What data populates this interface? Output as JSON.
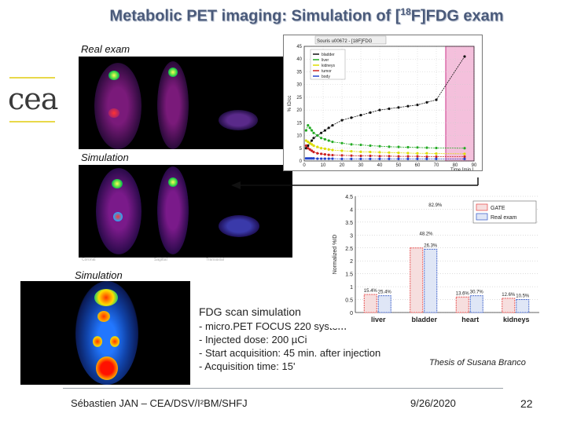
{
  "slide": {
    "title_pre": "Metabolic PET imaging: Simulation of [",
    "title_sup": "18",
    "title_post": "F]FDG exam",
    "logo_text": "cea",
    "label_real": "Real exam",
    "label_sim1": "Simulation",
    "label_sim2": "Simulation",
    "view_labels": [
      "Coronal",
      "Sagittal",
      "Transaxial"
    ],
    "desc_title": "FDG scan simulation",
    "desc_items": [
      "- micro.PET FOCUS 220 system",
      "- Injected dose: 200 µCi",
      "- Start acquisition: 45 min. after injection",
      "- Acquisition time: 15'"
    ],
    "thesis": "Thesis of Susana Branco",
    "footer_author": "Sébastien JAN – CEA/DSV/I²BM/SHFJ",
    "footer_date": "9/26/2020",
    "footer_page": "22"
  },
  "colors": {
    "title": "#4a5a7a",
    "logo_line": "#e8d84a",
    "logo_text": "#3a3a3a",
    "highlight": "#f4c0dc"
  },
  "chart_data": [
    {
      "type": "line",
      "title": "Souris u00672 - [18F]FDG",
      "xlabel": "Time [min.]",
      "ylabel": "% ID/cc",
      "xlim": [
        0,
        90
      ],
      "ylim": [
        0,
        45
      ],
      "xticks": [
        0,
        10,
        20,
        30,
        40,
        50,
        60,
        70,
        80,
        90
      ],
      "yticks": [
        0,
        5,
        10,
        15,
        20,
        25,
        30,
        35,
        40,
        45
      ],
      "legend": [
        "bladder",
        "liver",
        "kidneys",
        "tumor",
        "body"
      ],
      "series": [
        {
          "name": "bladder",
          "color": "#111111",
          "x": [
            1,
            2,
            3,
            4,
            5,
            7,
            9,
            11,
            13,
            15,
            20,
            25,
            30,
            35,
            40,
            45,
            50,
            55,
            60,
            65,
            70,
            85
          ],
          "y": [
            5,
            6,
            7,
            8,
            9,
            10,
            11,
            12,
            13,
            14,
            16,
            17,
            18,
            19,
            20,
            20.5,
            21,
            21.5,
            22,
            23,
            24,
            41
          ]
        },
        {
          "name": "liver",
          "color": "#22aa22",
          "x": [
            1,
            2,
            3,
            4,
            5,
            7,
            9,
            11,
            13,
            15,
            20,
            25,
            30,
            35,
            40,
            45,
            50,
            55,
            60,
            65,
            70,
            85
          ],
          "y": [
            12,
            14,
            13,
            12,
            11,
            10,
            9,
            8.5,
            8,
            7.5,
            7,
            6.5,
            6.3,
            6,
            5.8,
            5.6,
            5.5,
            5.4,
            5.3,
            5.2,
            5.1,
            5
          ]
        },
        {
          "name": "kidneys",
          "color": "#dddd00",
          "x": [
            1,
            2,
            3,
            4,
            5,
            7,
            9,
            11,
            13,
            15,
            20,
            25,
            30,
            35,
            40,
            45,
            50,
            55,
            60,
            65,
            70,
            85
          ],
          "y": [
            8,
            7.5,
            7,
            6.5,
            6,
            5.5,
            5,
            4.8,
            4.5,
            4.3,
            4,
            3.8,
            3.6,
            3.5,
            3.4,
            3.3,
            3.2,
            3.1,
            3,
            3,
            2.9,
            2.8
          ]
        },
        {
          "name": "tumor",
          "color": "#cc2222",
          "x": [
            1,
            2,
            3,
            4,
            5,
            7,
            9,
            11,
            13,
            15,
            20,
            25,
            30,
            35,
            40,
            45,
            50,
            55,
            60,
            65,
            70,
            85
          ],
          "y": [
            6,
            5,
            4.5,
            4,
            3.5,
            3,
            2.8,
            2.6,
            2.4,
            2.3,
            2.2,
            2.1,
            2,
            2,
            1.9,
            1.9,
            1.8,
            1.8,
            1.8,
            1.7,
            1.7,
            1.7
          ]
        },
        {
          "name": "body",
          "color": "#2244cc",
          "x": [
            1,
            2,
            3,
            4,
            5,
            7,
            9,
            11,
            13,
            15,
            20,
            25,
            30,
            35,
            40,
            45,
            50,
            55,
            60,
            65,
            70,
            85
          ],
          "y": [
            1,
            1,
            1,
            1,
            1,
            0.9,
            0.9,
            0.9,
            0.9,
            0.9,
            0.8,
            0.8,
            0.8,
            0.8,
            0.8,
            0.8,
            0.8,
            0.8,
            0.8,
            0.8,
            0.8,
            0.8
          ]
        }
      ],
      "highlight_x": [
        75,
        90
      ]
    },
    {
      "type": "bar",
      "ylabel": "Normalized %ID",
      "ylim": [
        0,
        4.5
      ],
      "yticks": [
        0,
        0.5,
        1,
        1.5,
        2,
        2.5,
        3,
        3.5,
        4,
        4.5
      ],
      "categories": [
        "liver",
        "bladder",
        "heart",
        "kidneys"
      ],
      "legend": [
        "GATE",
        "Real exam"
      ],
      "series": [
        {
          "name": "GATE",
          "color": "#e85555",
          "values": [
            0.7,
            2.5,
            0.6,
            0.55
          ],
          "labels": [
            "15.4%",
            "",
            "13.6%",
            "12.6%"
          ]
        },
        {
          "name": "Real exam",
          "color": "#4466cc",
          "values": [
            0.65,
            2.45,
            0.65,
            0.5
          ],
          "labels": [
            "25.4%",
            "26.3%",
            "30.7%",
            "10.5%"
          ]
        }
      ],
      "annotations": [
        "82.9%",
        "48.2%"
      ]
    }
  ]
}
